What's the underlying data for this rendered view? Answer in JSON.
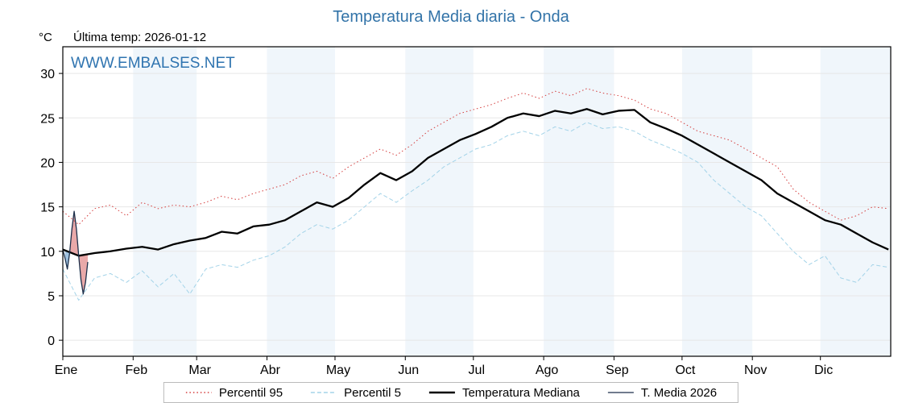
{
  "title": "Temperatura Media diaria - Onda",
  "watermark": "WWW.EMBALSES.NET",
  "header": {
    "unit": "°C",
    "last_temp": "Última temp: 2026-01-12"
  },
  "legend": [
    {
      "label": "Percentil 95",
      "color": "#d43d3d",
      "style": "dotted"
    },
    {
      "label": "Percentil 5",
      "color": "#a3d3e8",
      "style": "dashed"
    },
    {
      "label": "Temperatura Mediana",
      "color": "#000000",
      "style": "thick"
    },
    {
      "label": "T. Media 2026",
      "color": "#1c2f4a",
      "style": "thin"
    }
  ],
  "chart_data": {
    "type": "line",
    "title": "Temperatura Media diaria - Onda",
    "xlabel": "",
    "ylabel": "°C",
    "x_months": [
      "Ene",
      "Feb",
      "Mar",
      "Abr",
      "May",
      "Jun",
      "Jul",
      "Ago",
      "Sep",
      "Oct",
      "Nov",
      "Dic"
    ],
    "month_days": [
      31,
      28,
      31,
      30,
      31,
      30,
      31,
      31,
      30,
      31,
      30,
      31
    ],
    "ylim": [
      -1.8,
      33
    ],
    "yticks": [
      0,
      5,
      10,
      15,
      20,
      25,
      30
    ],
    "grid": true,
    "band_fill": "#e3eef7",
    "legend_position": "bottom",
    "series": [
      {
        "name": "Percentil 95",
        "color": "#d43d3d",
        "width": 1,
        "dash": "1.5 3",
        "x_step_days": 7,
        "values": [
          14.5,
          13.0,
          14.8,
          15.2,
          14.0,
          15.5,
          14.8,
          15.2,
          15.0,
          15.5,
          16.2,
          15.8,
          16.5,
          17.0,
          17.5,
          18.5,
          19.0,
          18.2,
          19.5,
          20.5,
          21.5,
          20.8,
          22.0,
          23.5,
          24.5,
          25.5,
          26.0,
          26.5,
          27.2,
          27.8,
          27.2,
          28.0,
          27.5,
          28.3,
          27.8,
          27.5,
          27.0,
          26.0,
          25.5,
          24.5,
          23.5,
          23.0,
          22.5,
          21.5,
          20.5,
          19.5,
          17.0,
          15.5,
          14.5,
          13.5,
          14.0,
          15.0,
          14.8
        ]
      },
      {
        "name": "Percentil 5",
        "color": "#a3d3e8",
        "width": 1,
        "dash": "5 3",
        "x_step_days": 7,
        "values": [
          8.0,
          4.5,
          7.0,
          7.5,
          6.5,
          7.8,
          6.0,
          7.5,
          5.2,
          8.0,
          8.5,
          8.2,
          9.0,
          9.5,
          10.5,
          12.0,
          13.0,
          12.5,
          13.5,
          15.0,
          16.5,
          15.5,
          16.8,
          18.0,
          19.5,
          20.5,
          21.5,
          22.0,
          23.0,
          23.5,
          23.0,
          24.0,
          23.5,
          24.5,
          23.8,
          24.0,
          23.5,
          22.5,
          21.8,
          21.0,
          20.0,
          18.0,
          16.5,
          15.0,
          14.0,
          12.0,
          10.0,
          8.5,
          9.5,
          7.0,
          6.5,
          8.5,
          8.2
        ]
      },
      {
        "name": "Temperatura Mediana",
        "color": "#000000",
        "width": 2.3,
        "dash": "",
        "x_step_days": 7,
        "values": [
          10.2,
          9.5,
          9.8,
          10.0,
          10.3,
          10.5,
          10.2,
          10.8,
          11.2,
          11.5,
          12.2,
          12.0,
          12.8,
          13.0,
          13.5,
          14.5,
          15.5,
          15.0,
          16.0,
          17.5,
          18.8,
          18.0,
          19.0,
          20.5,
          21.5,
          22.5,
          23.2,
          24.0,
          25.0,
          25.5,
          25.2,
          25.8,
          25.5,
          26.0,
          25.4,
          25.8,
          25.9,
          24.5,
          23.8,
          23.0,
          22.0,
          21.0,
          20.0,
          19.0,
          18.0,
          16.5,
          15.5,
          14.5,
          13.5,
          13.0,
          12.0,
          11.0,
          10.2
        ]
      },
      {
        "name": "T. Media 2026",
        "color": "#1c2f4a",
        "width": 1.3,
        "dash": "",
        "x_days": [
          0,
          1,
          2,
          3,
          4,
          5,
          6,
          7,
          8,
          9,
          10,
          11
        ],
        "values": [
          10.2,
          9.2,
          8.0,
          9.8,
          12.5,
          14.5,
          12.5,
          9.5,
          6.8,
          5.2,
          6.5,
          8.8
        ]
      }
    ],
    "fills": {
      "above_color": "#e59a9a",
      "below_color": "#8fb8dd",
      "opacity": 0.85
    }
  }
}
